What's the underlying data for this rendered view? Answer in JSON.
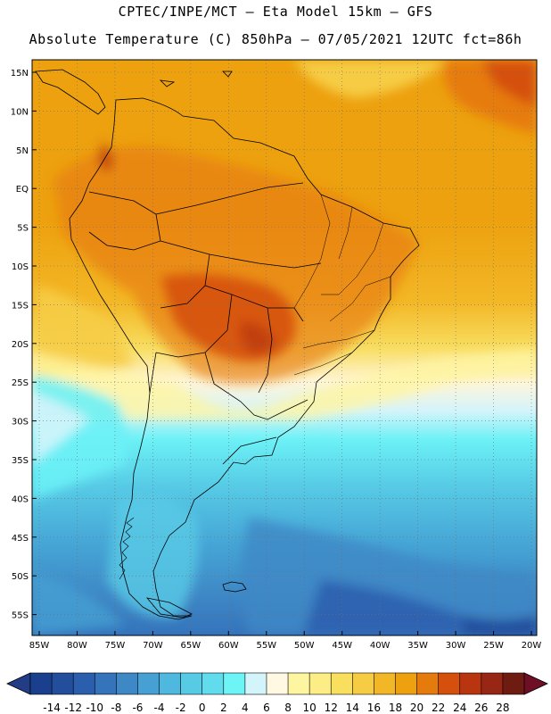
{
  "header": {
    "line1": "CPTEC/INPE/MCT –  Eta Model 15km – GFS",
    "line2": "Absolute Temperature (C) 850hPa – 07/05/2021 12UTC fct=86h"
  },
  "map": {
    "lat_labels": [
      "15N",
      "10N",
      "5N",
      "EQ",
      "5S",
      "10S",
      "15S",
      "20S",
      "25S",
      "30S",
      "35S",
      "40S",
      "45S",
      "50S",
      "55S"
    ],
    "lon_labels": [
      "85W",
      "80W",
      "75W",
      "70W",
      "65W",
      "60W",
      "55W",
      "50W",
      "45W",
      "40W",
      "35W",
      "30W",
      "25W",
      "20W"
    ]
  },
  "colorbar": {
    "labels": [
      "-14",
      "-12",
      "-10",
      "-8",
      "-6",
      "-4",
      "-2",
      "0",
      "2",
      "4",
      "6",
      "8",
      "10",
      "12",
      "14",
      "16",
      "18",
      "20",
      "22",
      "24",
      "26",
      "28"
    ],
    "colors": [
      "#1a3f8c",
      "#234e9c",
      "#2b5fae",
      "#3573bb",
      "#3e88c6",
      "#46a0d3",
      "#4fb8de",
      "#57cbe6",
      "#60dcec",
      "#6cf4f6",
      "#d4f4fb",
      "#fff8e2",
      "#fef5a0",
      "#fcee85",
      "#f9df5e",
      "#f6cc45",
      "#f2b726",
      "#eda10f",
      "#e67b0d",
      "#d5500c",
      "#b83510",
      "#982614",
      "#6e1c12"
    ],
    "under_color": "#233c86",
    "over_color": "#6e0f25"
  },
  "colors": {
    "land_border": "#000000",
    "grid": "#6f6f6f"
  }
}
